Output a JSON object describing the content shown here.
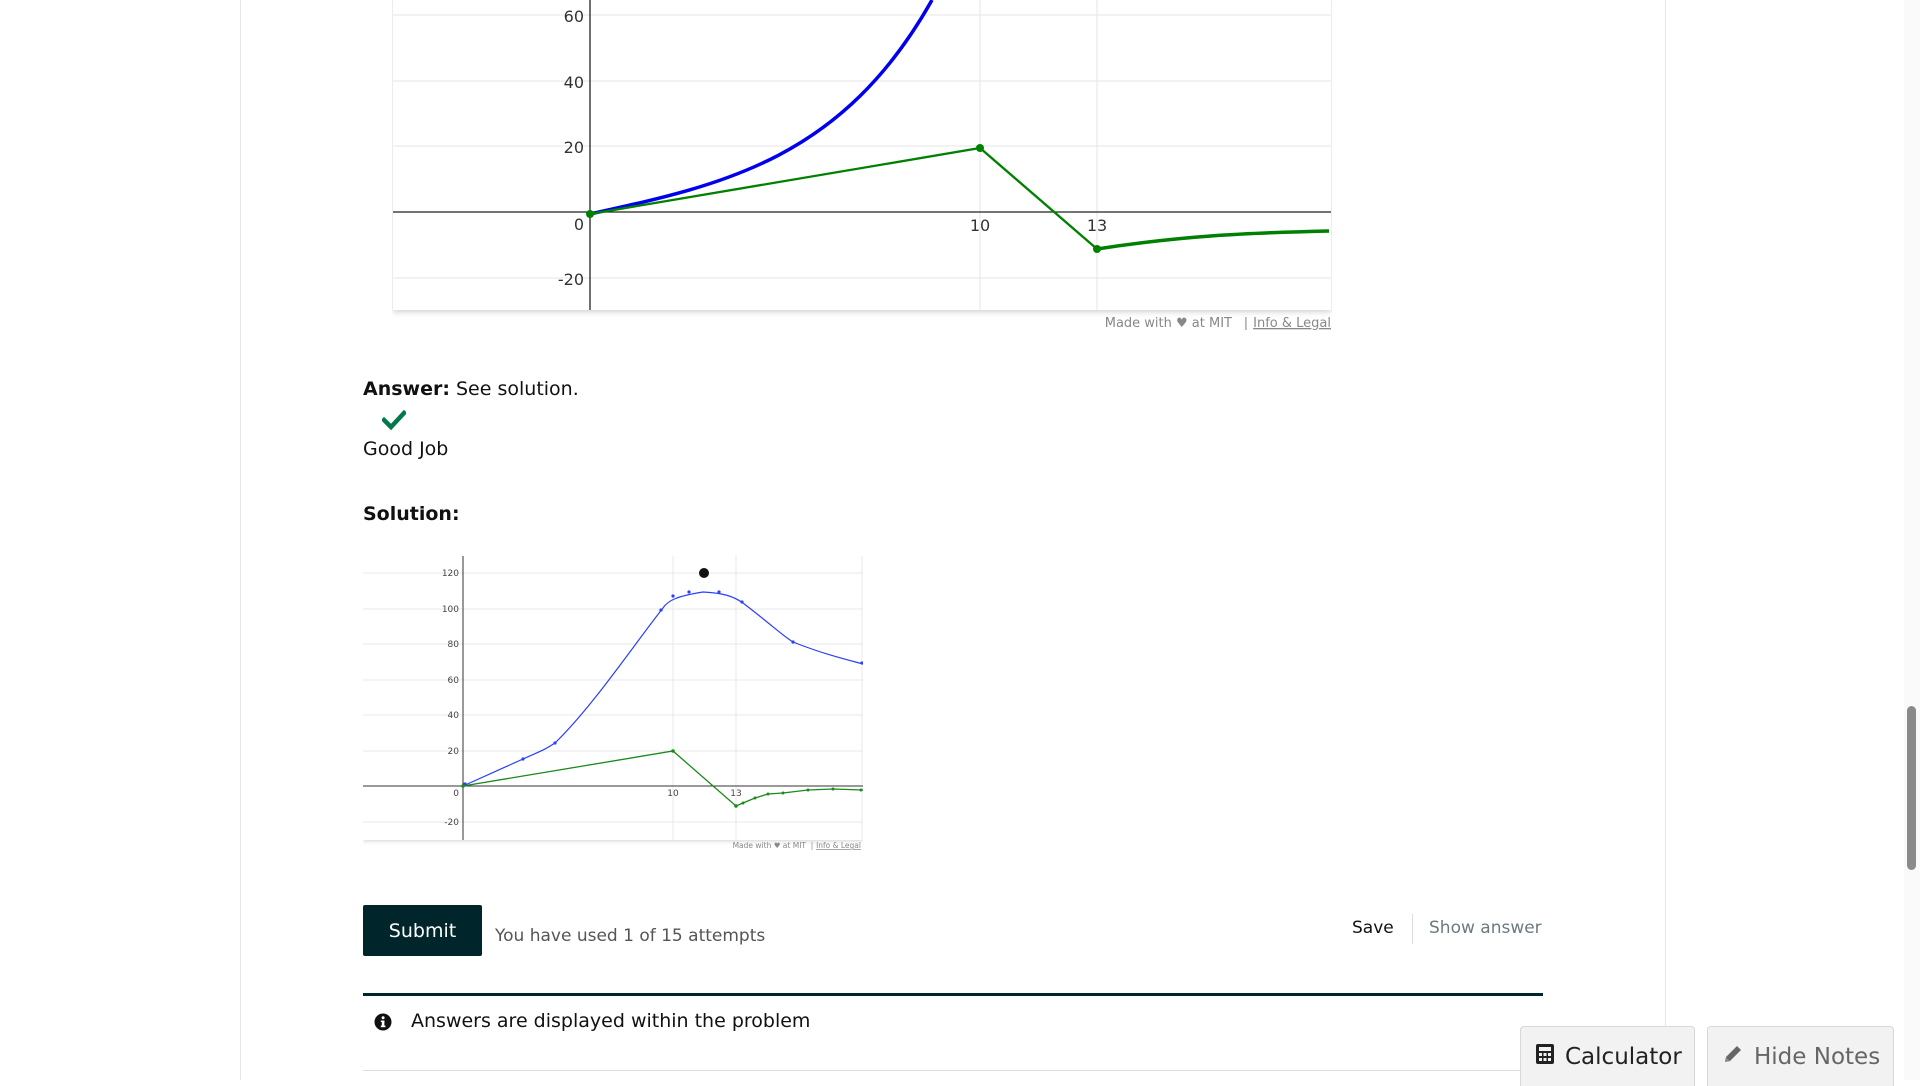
{
  "graph1": {
    "y_ticks": [
      "60",
      "40",
      "20",
      "0",
      "-20"
    ],
    "x_ticks": [
      "10",
      "13"
    ],
    "credit": "Made with ♥ at MIT",
    "credit_sep": "|",
    "credit_link": "Info & Legal",
    "colors": {
      "blue": "#0000ee",
      "green": "#008000"
    }
  },
  "answer": {
    "label": "Answer:",
    "text": "See solution.",
    "status_icon": "check-icon",
    "status_color": "#007a4d",
    "feedback": "Good Job"
  },
  "solution": {
    "label": "Solution:",
    "graph": {
      "y_ticks": [
        "120",
        "100",
        "80",
        "60",
        "40",
        "20",
        "0",
        "-20"
      ],
      "x_ticks": [
        "10",
        "13"
      ],
      "credit": "Made with ♥ at MIT",
      "credit_sep": "|",
      "credit_link": "Info & Legal"
    }
  },
  "actions": {
    "submit_label": "Submit",
    "attempts_text": "You have used 1 of 15 attempts",
    "save_label": "Save",
    "show_answer_label": "Show answer"
  },
  "notice": {
    "icon": "info-icon",
    "text": "Answers are displayed within the problem"
  },
  "floating": {
    "calculator_label": "Calculator",
    "calculator_icon": "calculator-icon",
    "notes_label": "Hide Notes",
    "notes_icon": "pencil-icon"
  },
  "theme": {
    "primary": "#00262b"
  }
}
